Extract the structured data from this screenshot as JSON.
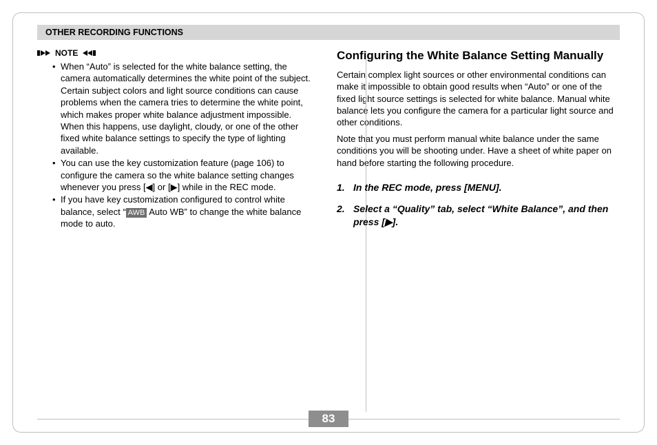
{
  "section_header": "OTHER RECORDING FUNCTIONS",
  "note": {
    "label": "NOTE",
    "bullets": [
      "When “Auto” is selected for the white balance setting, the camera automatically determines the white point of the subject. Certain subject colors and light source conditions can cause problems when the camera tries to determine the white point, which makes proper white balance adjustment impossible. When this happens, use daylight, cloudy, or one of the other fixed white balance settings to specify the type of lighting available.",
      "You can use the key customization feature (page 106) to configure the camera so the white balance setting changes whenever you press [◀] or [▶] while in the REC mode.",
      "If you have key customization configured to control white balance, select “__AWB__ Auto WB” to change the white balance mode to auto."
    ],
    "awb_label": "AWB"
  },
  "right": {
    "heading": "Configuring the White Balance Setting Manually",
    "para1": "Certain complex light sources or other environmental conditions can make it impossible to obtain good results when “Auto” or one of the fixed light source settings is selected for white balance. Manual white balance lets you configure the camera for a particular light source and other conditions.",
    "para2": "Note that you must perform manual white balance under the same conditions you will be shooting under. Have a sheet of white paper on hand before starting the following procedure.",
    "steps": [
      {
        "num": "1.",
        "text": "In the REC mode, press [MENU]."
      },
      {
        "num": "2.",
        "text": "Select a “Quality” tab, select “White Balance”, and then press [▶]."
      }
    ]
  },
  "page_number": "83",
  "colors": {
    "header_bg": "#d6d6d6",
    "page_num_bg": "#8e8e8e",
    "divider": "#bfbfbf",
    "awb_bg": "#6f6f6f"
  }
}
